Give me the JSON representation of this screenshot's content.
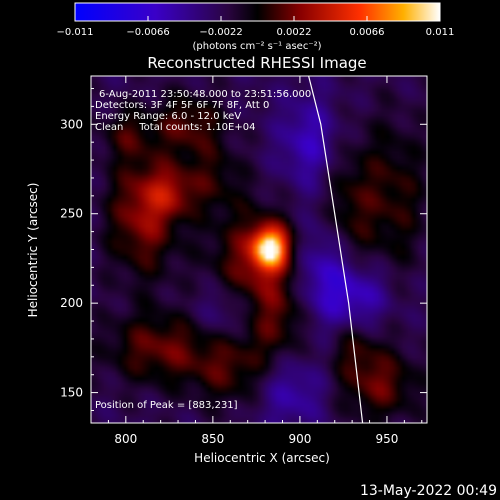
{
  "chart_data": {
    "type": "heatmap",
    "title": "Reconstructed RHESSI Image",
    "xlabel": "Heliocentric X (arcsec)",
    "ylabel": "Heliocentric Y (arcsec)",
    "xlim": [
      780,
      973
    ],
    "ylim": [
      133,
      327
    ],
    "xticks": [
      800,
      850,
      900,
      950
    ],
    "yticks": [
      150,
      200,
      250,
      300
    ],
    "colorbar": {
      "range": [
        -0.011,
        0.011
      ],
      "ticks": [
        "-0.011",
        "-0.0066",
        "-0.0022",
        "0.0022",
        "0.0066",
        "0.011"
      ],
      "units": "(photons cm⁻² s⁻¹ asec⁻²)"
    },
    "annotations": [
      "6-Aug-2011 23:50:48.000 to 23:51:56.000",
      "Detectors: 3F 4F 5F 6F 7F 8F, Att 0",
      "Energy Range: 6.0 - 12.0 keV",
      "Clean     Total counts: 1.10E+04"
    ],
    "peak_label": "Position of Peak = [883,231]",
    "peak": {
      "x": 883,
      "y": 231,
      "value": 0.011
    },
    "sources": [
      {
        "x": 883,
        "y": 231,
        "sx": 7,
        "sy": 8,
        "value": 0.011
      },
      {
        "x": 874,
        "y": 222,
        "sx": 18,
        "sy": 22,
        "value": 0.0045
      },
      {
        "x": 810,
        "y": 250,
        "sx": 14,
        "sy": 24,
        "value": 0.005
      },
      {
        "x": 826,
        "y": 262,
        "sx": 10,
        "sy": 10,
        "value": 0.0035
      },
      {
        "x": 836,
        "y": 300,
        "sx": 14,
        "sy": 12,
        "value": 0.0036
      },
      {
        "x": 800,
        "y": 295,
        "sx": 10,
        "sy": 10,
        "value": 0.0025
      },
      {
        "x": 820,
        "y": 175,
        "sx": 22,
        "sy": 14,
        "value": 0.004
      },
      {
        "x": 860,
        "y": 162,
        "sx": 16,
        "sy": 14,
        "value": 0.003
      },
      {
        "x": 850,
        "y": 270,
        "sx": 12,
        "sy": 14,
        "value": 0.0025
      },
      {
        "x": 885,
        "y": 190,
        "sx": 14,
        "sy": 16,
        "value": 0.003
      },
      {
        "x": 927,
        "y": 248,
        "sx": 10,
        "sy": 28,
        "value": 0.0028
      },
      {
        "x": 953,
        "y": 260,
        "sx": 14,
        "sy": 30,
        "value": 0.003
      },
      {
        "x": 945,
        "y": 155,
        "sx": 16,
        "sy": 14,
        "value": 0.004
      },
      {
        "x": 930,
        "y": 175,
        "sx": 10,
        "sy": 10,
        "value": 0.0022
      },
      {
        "x": 905,
        "y": 290,
        "sx": 12,
        "sy": 18,
        "value": -0.0035
      },
      {
        "x": 915,
        "y": 215,
        "sx": 12,
        "sy": 20,
        "value": -0.0045
      },
      {
        "x": 860,
        "y": 195,
        "sx": 14,
        "sy": 12,
        "value": -0.003
      },
      {
        "x": 895,
        "y": 150,
        "sx": 14,
        "sy": 14,
        "value": -0.003
      },
      {
        "x": 935,
        "y": 205,
        "sx": 12,
        "sy": 12,
        "value": -0.0035
      }
    ],
    "limb": [
      [
        905,
        327
      ],
      [
        912,
        300
      ],
      [
        920,
        250
      ],
      [
        928,
        200
      ],
      [
        936,
        133
      ]
    ]
  },
  "footer": {
    "timestamp": "13-May-2022 00:49"
  }
}
